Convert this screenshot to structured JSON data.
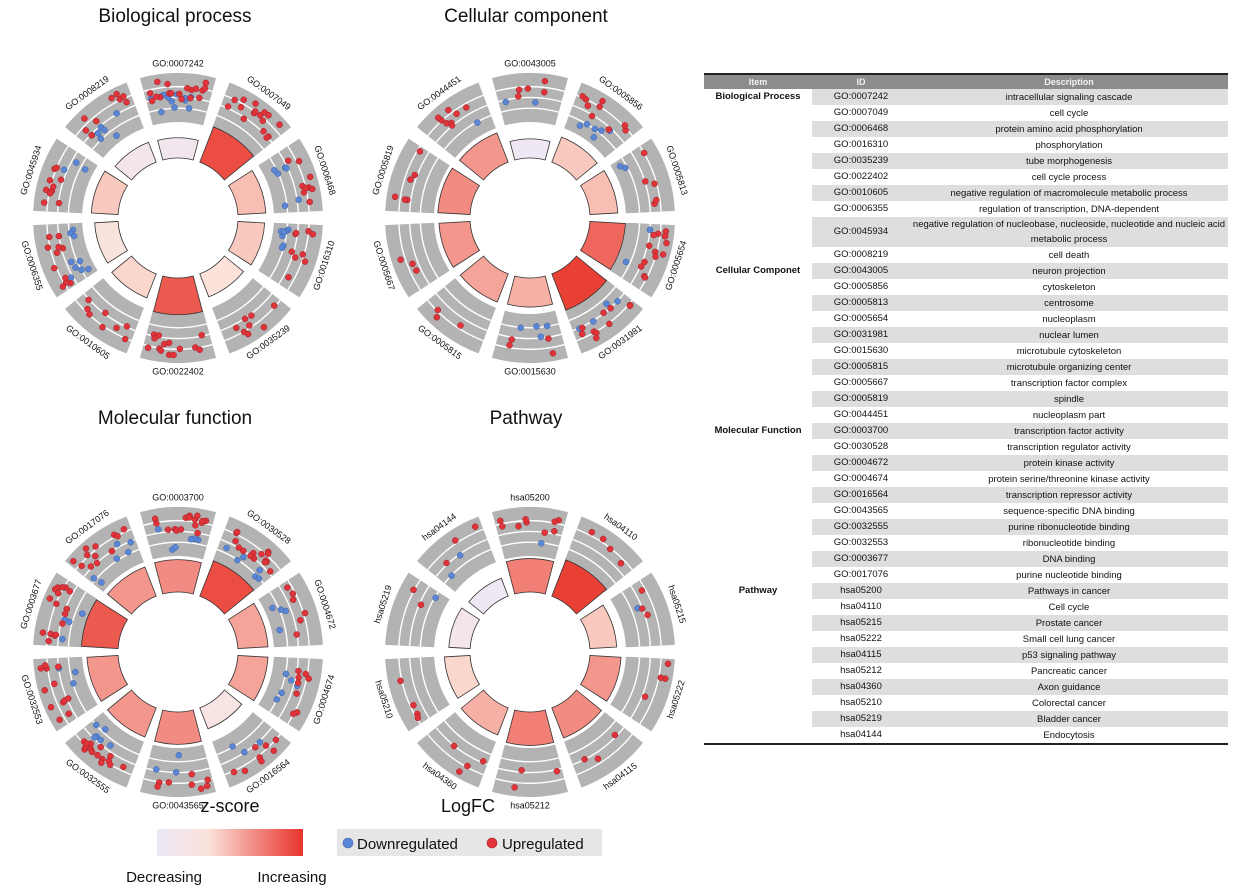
{
  "chart_data": [
    {
      "type": "circular-enrichment",
      "title": "Biological process",
      "terms": [
        "GO:0007242",
        "GO:0007049",
        "GO:0006468",
        "GO:0016310",
        "GO:0035239",
        "GO:0022402",
        "GO:0010605",
        "GO:0006355",
        "GO:0045934",
        "GO:0008219"
      ],
      "zscore": [
        0.1,
        0.9,
        0.45,
        0.4,
        0.3,
        0.85,
        0.35,
        0.25,
        0.4,
        0.15
      ],
      "genes": [
        {
          "up": 18,
          "down": 12
        },
        {
          "up": 16,
          "down": 0
        },
        {
          "up": 9,
          "down": 6
        },
        {
          "up": 9,
          "down": 7
        },
        {
          "up": 8,
          "down": 0
        },
        {
          "up": 14,
          "down": 0
        },
        {
          "up": 8,
          "down": 0
        },
        {
          "up": 11,
          "down": 9
        },
        {
          "up": 10,
          "down": 3
        },
        {
          "up": 9,
          "down": 7
        }
      ]
    },
    {
      "type": "circular-enrichment",
      "title": "Cellular component",
      "terms": [
        "GO:0043005",
        "GO:0005856",
        "GO:0005813",
        "GO:0005654",
        "GO:0031981",
        "GO:0015630",
        "GO:0005815",
        "GO:0005667",
        "GO:0005819",
        "GO:0044451"
      ],
      "zscore": [
        0.05,
        0.4,
        0.45,
        0.8,
        0.95,
        0.5,
        0.55,
        0.6,
        0.65,
        0.6
      ],
      "genes": [
        {
          "up": 5,
          "down": 2
        },
        {
          "up": 9,
          "down": 6
        },
        {
          "up": 5,
          "down": 2
        },
        {
          "up": 14,
          "down": 2
        },
        {
          "up": 10,
          "down": 4
        },
        {
          "up": 4,
          "down": 4
        },
        {
          "up": 3,
          "down": 0
        },
        {
          "up": 3,
          "down": 0
        },
        {
          "up": 6,
          "down": 0
        },
        {
          "up": 8,
          "down": 1
        }
      ]
    },
    {
      "type": "circular-enrichment",
      "title": "Molecular function",
      "terms": [
        "GO:0003700",
        "GO:0030528",
        "GO:0004672",
        "GO:0004674",
        "GO:0016564",
        "GO:0043565",
        "GO:0032555",
        "GO:0032553",
        "GO:0003677",
        "GO:0017076"
      ],
      "zscore": [
        0.65,
        0.9,
        0.55,
        0.55,
        0.2,
        0.65,
        0.6,
        0.6,
        0.85,
        0.6
      ],
      "genes": [
        {
          "up": 16,
          "down": 6
        },
        {
          "up": 15,
          "down": 6
        },
        {
          "up": 6,
          "down": 4
        },
        {
          "up": 8,
          "down": 5
        },
        {
          "up": 8,
          "down": 3
        },
        {
          "up": 8,
          "down": 3
        },
        {
          "up": 15,
          "down": 6
        },
        {
          "up": 12,
          "down": 3
        },
        {
          "up": 16,
          "down": 4
        },
        {
          "up": 12,
          "down": 6
        }
      ]
    },
    {
      "type": "circular-enrichment",
      "title": "Pathway",
      "terms": [
        "hsa05200",
        "hsa04110",
        "hsa05215",
        "hsa05222",
        "hsa04115",
        "hsa05212",
        "hsa04360",
        "hsa05210",
        "hsa05219",
        "hsa04144"
      ],
      "zscore": [
        0.7,
        0.95,
        0.4,
        0.6,
        0.65,
        0.7,
        0.5,
        0.35,
        0.15,
        0.05
      ],
      "genes": [
        {
          "up": 9,
          "down": 1
        },
        {
          "up": 4,
          "down": 0
        },
        {
          "up": 3,
          "down": 1
        },
        {
          "up": 4,
          "down": 0
        },
        {
          "up": 3,
          "down": 0
        },
        {
          "up": 3,
          "down": 0
        },
        {
          "up": 4,
          "down": 0
        },
        {
          "up": 4,
          "down": 0
        },
        {
          "up": 2,
          "down": 1
        },
        {
          "up": 3,
          "down": 2
        }
      ]
    }
  ],
  "legend": {
    "zscore_title": "z-score",
    "logfc_title": "LogFC",
    "decreasing": "Decreasing",
    "increasing": "Increasing",
    "down": "Downregulated",
    "up": "Upregulated",
    "colors": {
      "down": "#5b86d6",
      "up": "#e0333a",
      "low": "#ece8f8",
      "high": "#e8342a",
      "track": "#b3b3b3"
    }
  },
  "table": {
    "headers": [
      "Item",
      "ID",
      "Description"
    ],
    "groups": [
      {
        "item": "Biological Process",
        "rows": [
          {
            "id": "GO:0007242",
            "desc": "intracellular signaling cascade"
          },
          {
            "id": "GO:0007049",
            "desc": "cell cycle"
          },
          {
            "id": "GO:0006468",
            "desc": "protein amino acid phosphorylation"
          },
          {
            "id": "GO:0016310",
            "desc": "phosphorylation"
          },
          {
            "id": "GO:0035239",
            "desc": "tube morphogenesis"
          },
          {
            "id": "GO:0022402",
            "desc": "cell cycle process"
          },
          {
            "id": "GO:0010605",
            "desc": "negative regulation of macromolecule metabolic process"
          },
          {
            "id": "GO:0006355",
            "desc": "regulation of transcription, DNA-dependent"
          },
          {
            "id": "GO:0045934",
            "desc": "negative regulation of nucleobase, nucleoside, nucleotide and nucleic acid metabolic process"
          },
          {
            "id": "GO:0008219",
            "desc": "cell death"
          }
        ]
      },
      {
        "item": "Cellular Componet",
        "rows": [
          {
            "id": "GO:0043005",
            "desc": "neuron projection"
          },
          {
            "id": "GO:0005856",
            "desc": "cytoskeleton"
          },
          {
            "id": "GO:0005813",
            "desc": "centrosome"
          },
          {
            "id": "GO:0005654",
            "desc": "nucleoplasm"
          },
          {
            "id": "GO:0031981",
            "desc": "nuclear lumen"
          },
          {
            "id": "GO:0015630",
            "desc": "microtubule cytoskeleton"
          },
          {
            "id": "GO:0005815",
            "desc": "microtubule organizing center"
          },
          {
            "id": "GO:0005667",
            "desc": "transcription factor complex"
          },
          {
            "id": "GO:0005819",
            "desc": "spindle"
          },
          {
            "id": "GO:0044451",
            "desc": "nucleoplasm part"
          }
        ]
      },
      {
        "item": "Molecular Function",
        "rows": [
          {
            "id": "GO:0003700",
            "desc": "transcription factor activity"
          },
          {
            "id": "GO:0030528",
            "desc": "transcription regulator activity"
          },
          {
            "id": "GO:0004672",
            "desc": "protein kinase activity"
          },
          {
            "id": "GO:0004674",
            "desc": "protein serine/threonine kinase activity"
          },
          {
            "id": "GO:0016564",
            "desc": "transcription repressor activity"
          },
          {
            "id": "GO:0043565",
            "desc": "sequence-specific DNA binding"
          },
          {
            "id": "GO:0032555",
            "desc": "purine ribonucleotide binding"
          },
          {
            "id": "GO:0032553",
            "desc": "ribonucleotide binding"
          },
          {
            "id": "GO:0003677",
            "desc": "DNA binding"
          },
          {
            "id": "GO:0017076",
            "desc": "purine nucleotide binding"
          }
        ]
      },
      {
        "item": "Pathway",
        "rows": [
          {
            "id": "hsa05200",
            "desc": "Pathways in cancer"
          },
          {
            "id": "hsa04110",
            "desc": "Cell cycle"
          },
          {
            "id": "hsa05215",
            "desc": "Prostate cancer"
          },
          {
            "id": "hsa05222",
            "desc": "Small cell lung cancer"
          },
          {
            "id": "hsa04115",
            "desc": "p53 signaling pathway"
          },
          {
            "id": "hsa05212",
            "desc": "Pancreatic cancer"
          },
          {
            "id": "hsa04360",
            "desc": "Axon guidance"
          },
          {
            "id": "hsa05210",
            "desc": "Colorectal cancer"
          },
          {
            "id": "hsa05219",
            "desc": "Bladder cancer"
          },
          {
            "id": "hsa04144",
            "desc": "Endocytosis"
          }
        ]
      }
    ]
  }
}
